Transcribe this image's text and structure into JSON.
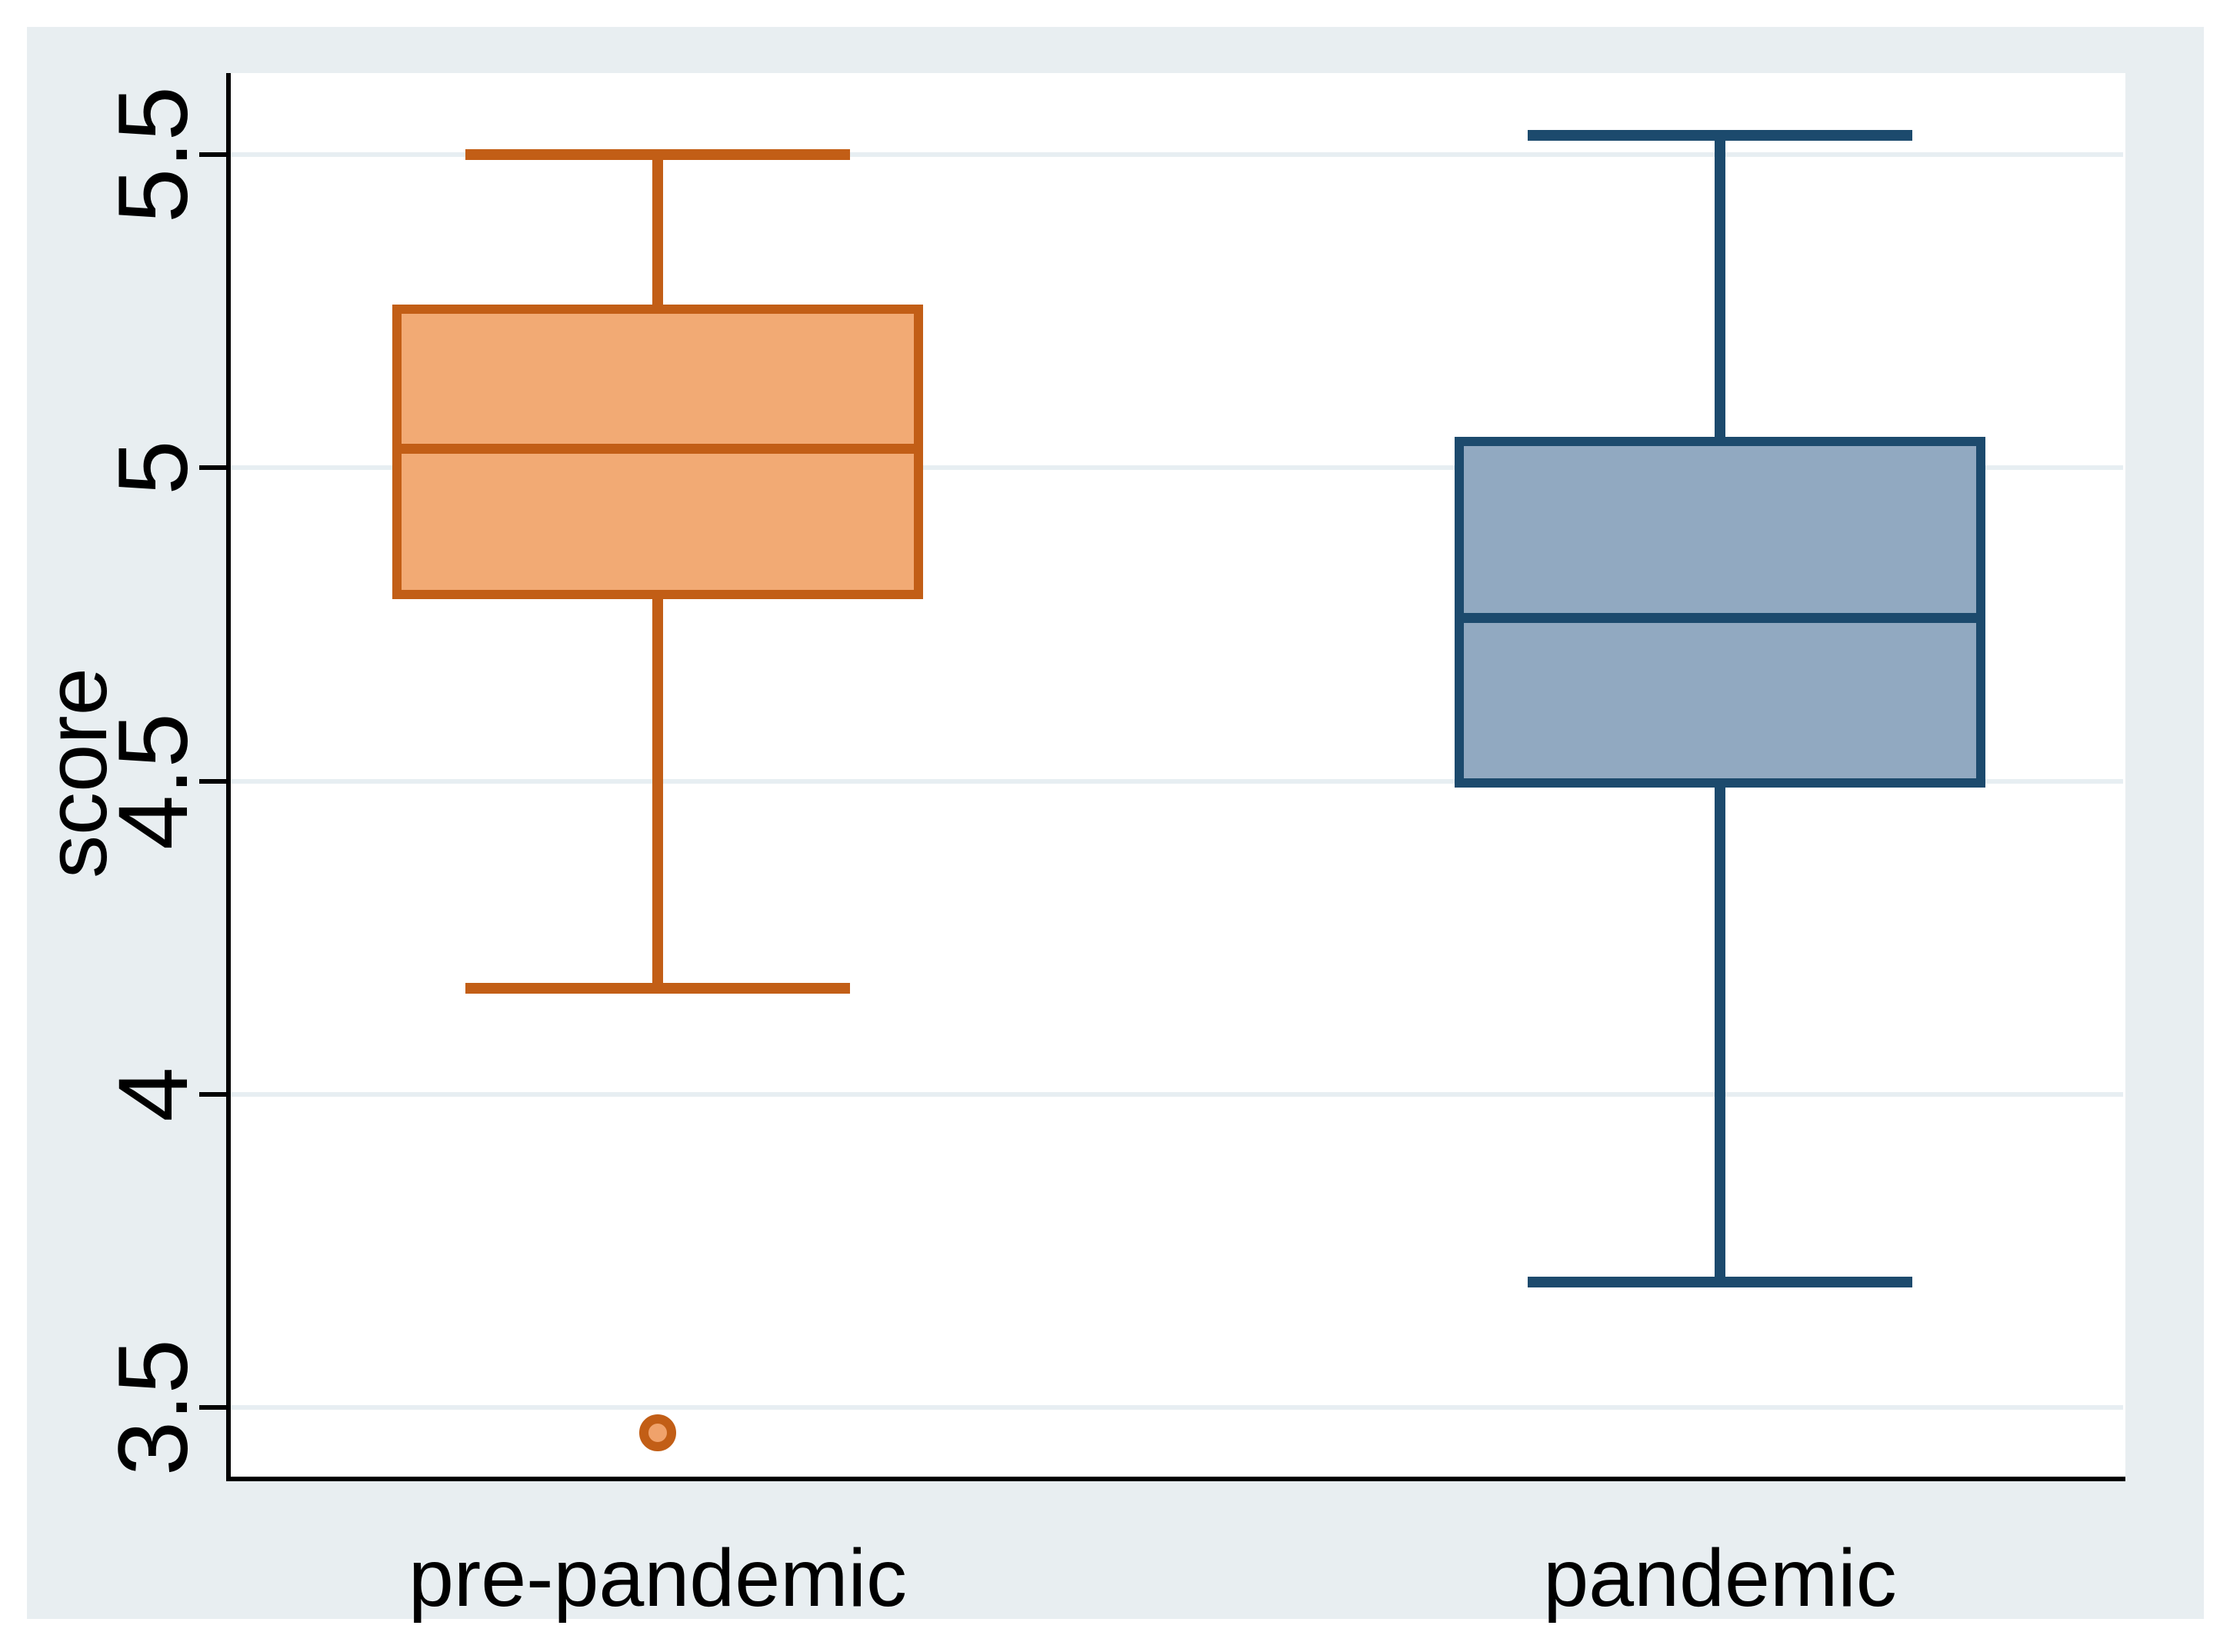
{
  "page": {
    "colors": {
      "page_bg": "#ffffff",
      "figure_bg": "#e8eef1",
      "plot_bg": "#ffffff",
      "gridline": "#e7eef2",
      "axis": "#000000",
      "text": "#000000",
      "outlier_inner": "#f0a26b"
    }
  },
  "chart_data": {
    "type": "box",
    "title": "",
    "xlabel": "",
    "ylabel": "score",
    "ylim": [
      3.39,
      5.63
    ],
    "yticks": [
      3.5,
      4,
      4.5,
      5,
      5.5
    ],
    "ytick_labels": [
      "3.5",
      "4",
      "4.5",
      "5",
      "5.5"
    ],
    "grid": "horizontal",
    "legend": "none",
    "categories": [
      "pre-pandemic",
      "pandemic"
    ],
    "series": [
      {
        "name": "pre-pandemic",
        "whisker_low": 4.17,
        "q1": 4.79,
        "median": 5.03,
        "q3": 5.26,
        "whisker_high": 5.5,
        "outliers": [
          3.46
        ],
        "fill": "#f2aa74",
        "stroke": "#c25e16"
      },
      {
        "name": "pandemic",
        "whisker_low": 3.7,
        "q1": 4.49,
        "median": 4.76,
        "q3": 5.05,
        "whisker_high": 5.53,
        "outliers": [],
        "fill": "#91a9c1",
        "stroke": "#1c4a6d"
      }
    ]
  }
}
